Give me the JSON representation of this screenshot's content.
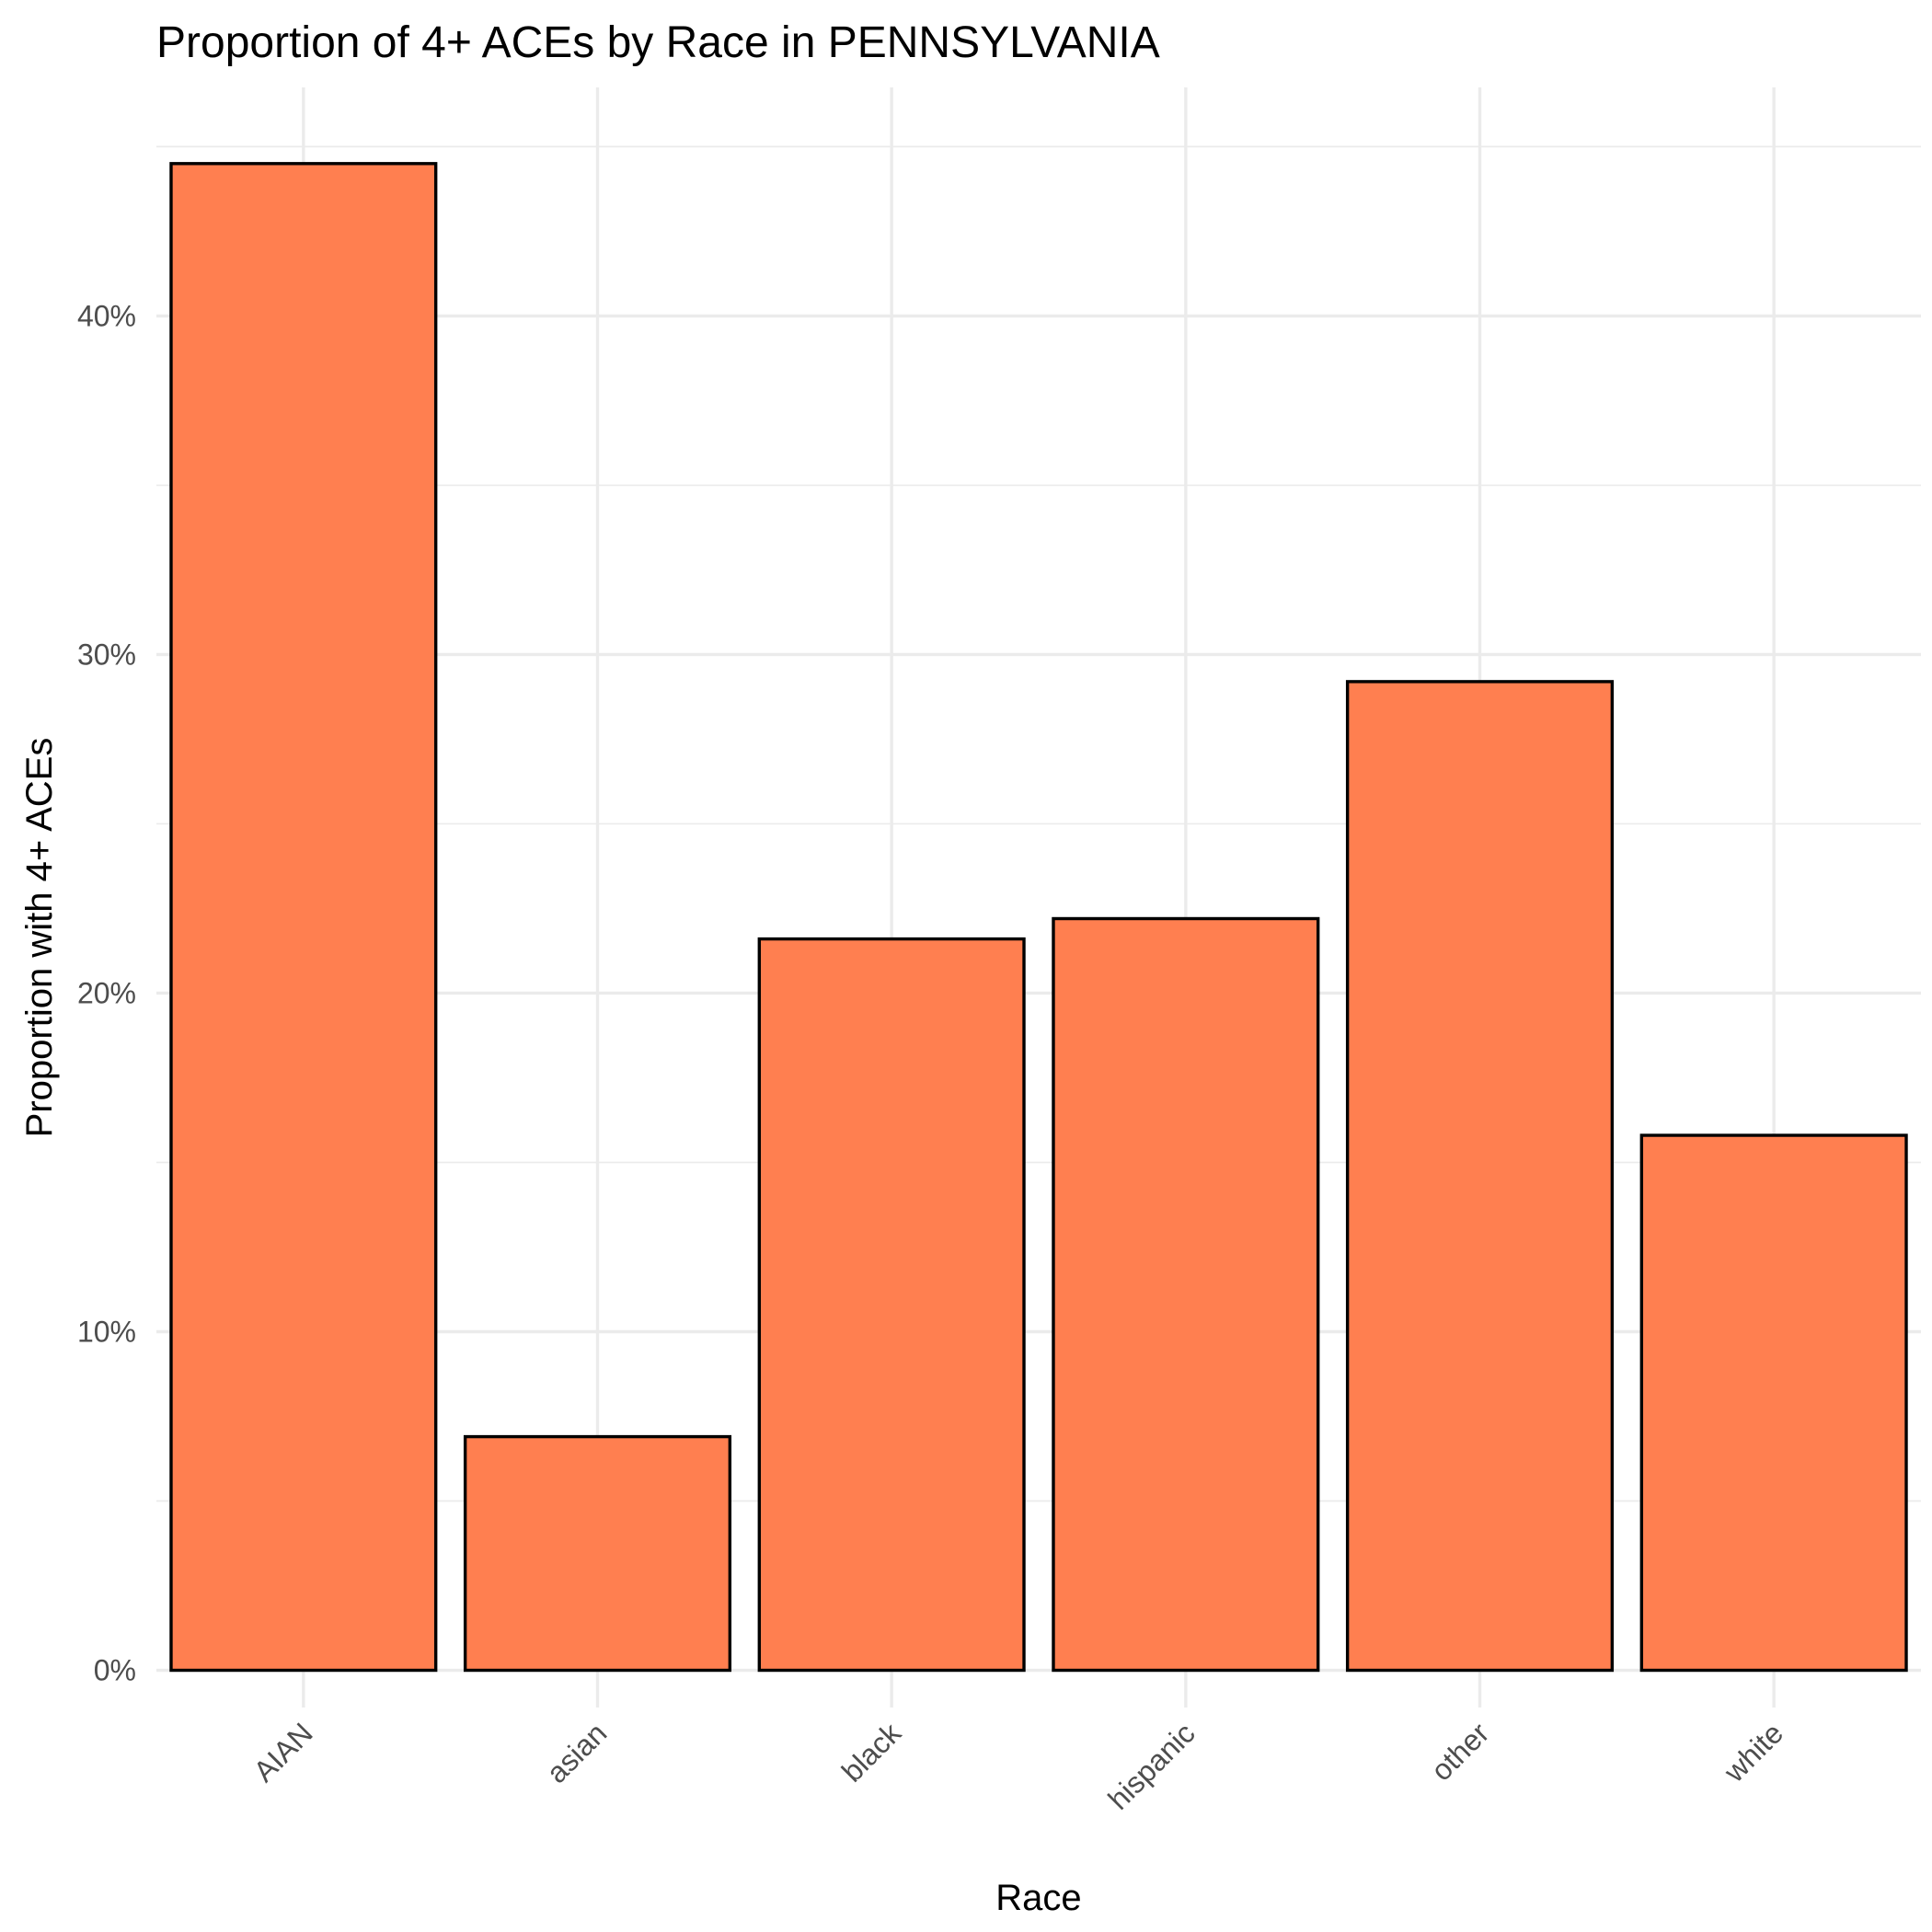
{
  "chart_data": {
    "type": "bar",
    "title": "Proportion of 4+ ACEs by Race in PENNSYLVANIA",
    "xlabel": "Race",
    "ylabel": "Proportion with 4+ ACEs",
    "categories": [
      "AIAN",
      "asian",
      "black",
      "hispanic",
      "other",
      "white"
    ],
    "values": [
      0.445,
      0.069,
      0.216,
      0.222,
      0.292,
      0.158
    ],
    "y_ticks": [
      0,
      0.1,
      0.2,
      0.3,
      0.4
    ],
    "y_tick_labels": [
      "0%",
      "10%",
      "20%",
      "30%",
      "40%"
    ],
    "ylim": [
      -0.011,
      0.4675
    ],
    "grid": true,
    "legend": "none",
    "colors": {
      "bar_fill": "#FF7F50",
      "bar_stroke": "#000000"
    }
  }
}
